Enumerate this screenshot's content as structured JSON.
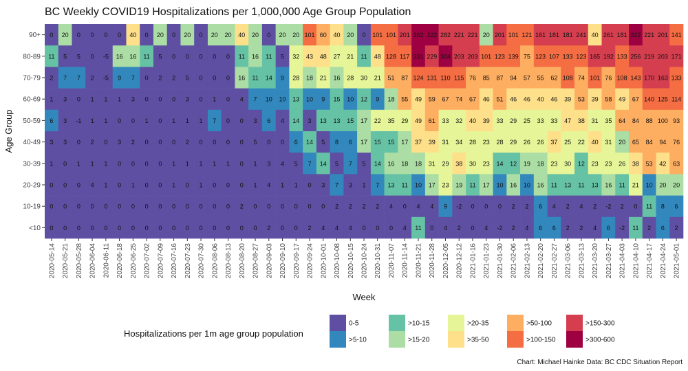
{
  "chart_data": {
    "type": "heatmap",
    "title": "BC Weekly COVID19 Hospitalizations per 1,000,000 Age Group Population",
    "xlabel": "Week",
    "ylabel": "Age Group",
    "caption": "Chart: Michael Hainke Data: BC CDC Situation Report",
    "legend_title": "Hospitalizations per 1m age group population",
    "legend_placement": "bottom",
    "x": [
      "2020-05-14",
      "2020-05-21",
      "2020-05-28",
      "2020-06-04",
      "2020-06-11",
      "2020-06-18",
      "2020-06-25",
      "2020-07-02",
      "2020-07-09",
      "2020-07-16",
      "2020-07-23",
      "2020-07-30",
      "2020-08-06",
      "2020-08-13",
      "2020-08-20",
      "2020-08-27",
      "2020-09-03",
      "2020-09-10",
      "2020-09-17",
      "2020-09-24",
      "2020-10-01",
      "2020-10-08",
      "2020-10-15",
      "2020-10-24",
      "2020-10-31",
      "2020-11-07",
      "2020-11-14",
      "2020-11-21",
      "2020-11-28",
      "2020-12-05",
      "2020-12-12",
      "2021-01-16",
      "2021-01-23",
      "2021-01-30",
      "2021-02-06",
      "2021-02-13",
      "2021-02-20",
      "2021-02-27",
      "2021-03-06",
      "2021-03-13",
      "2021-03-20",
      "2021-03-27",
      "2021-04-03",
      "2021-04-10",
      "2021-04-17",
      "2021-04-24",
      "2021-05-01"
    ],
    "tick_step": 1,
    "bins": [
      {
        "label": "0-5",
        "max": 5,
        "color": "#5e4fa2"
      },
      {
        "label": ">5-10",
        "max": 10,
        "color": "#3288bd"
      },
      {
        "label": ">10-15",
        "max": 15,
        "color": "#66c2a5"
      },
      {
        "label": ">15-20",
        "max": 20,
        "color": "#abdda4"
      },
      {
        "label": ">20-35",
        "max": 35,
        "color": "#e6f598"
      },
      {
        "label": ">35-50",
        "max": 50,
        "color": "#fee08b"
      },
      {
        "label": ">50-100",
        "max": 100,
        "color": "#fdae61"
      },
      {
        "label": ">100-150",
        "max": 150,
        "color": "#f46d43"
      },
      {
        "label": ">150-300",
        "max": 300,
        "color": "#d53e4f"
      },
      {
        "label": ">300-600",
        "max": 600,
        "color": "#9e0142"
      }
    ],
    "rows": [
      {
        "group": "90+",
        "values": [
          0,
          20,
          0,
          0,
          0,
          0,
          40,
          0,
          20,
          0,
          20,
          0,
          20,
          20,
          40,
          20,
          0,
          20,
          20,
          101,
          60,
          40,
          20,
          0,
          101,
          101,
          201,
          362,
          322,
          282,
          221,
          221,
          20,
          201,
          101,
          121,
          161,
          181,
          181,
          241,
          40,
          261,
          181,
          322,
          221,
          201,
          141
        ]
      },
      {
        "group": "80-89",
        "values": [
          11,
          5,
          5,
          0,
          -5,
          16,
          16,
          11,
          5,
          0,
          0,
          0,
          0,
          0,
          11,
          16,
          11,
          5,
          32,
          43,
          48,
          27,
          21,
          11,
          48,
          128,
          117,
          331,
          229,
          304,
          203,
          203,
          101,
          123,
          139,
          75,
          123,
          107,
          133,
          123,
          165,
          192,
          133,
          256,
          219,
          203,
          171
        ]
      },
      {
        "group": "70-79",
        "values": [
          2,
          7,
          7,
          2,
          -5,
          9,
          7,
          0,
          2,
          2,
          5,
          0,
          0,
          0,
          16,
          11,
          14,
          9,
          28,
          18,
          21,
          16,
          28,
          30,
          21,
          51,
          87,
          124,
          131,
          110,
          115,
          76,
          85,
          87,
          94,
          57,
          55,
          62,
          108,
          74,
          101,
          76,
          108,
          143,
          170,
          163,
          133
        ]
      },
      {
        "group": "60-69",
        "values": [
          1,
          3,
          0,
          1,
          1,
          1,
          3,
          0,
          0,
          0,
          3,
          0,
          1,
          0,
          4,
          7,
          10,
          10,
          13,
          10,
          9,
          15,
          10,
          12,
          9,
          18,
          55,
          49,
          59,
          67,
          74,
          67,
          46,
          51,
          46,
          46,
          40,
          46,
          39,
          53,
          39,
          58,
          49,
          67,
          140,
          125,
          114
        ]
      },
      {
        "group": "50-59",
        "values": [
          6,
          3,
          -1,
          1,
          1,
          0,
          0,
          1,
          0,
          1,
          1,
          1,
          7,
          0,
          0,
          3,
          6,
          4,
          14,
          3,
          13,
          13,
          15,
          17,
          22,
          35,
          29,
          49,
          61,
          33,
          32,
          40,
          39,
          33,
          29,
          25,
          33,
          33,
          47,
          38,
          31,
          35,
          64,
          84,
          88,
          100,
          93
        ]
      },
      {
        "group": "40-49",
        "values": [
          3,
          3,
          0,
          2,
          0,
          3,
          2,
          0,
          0,
          0,
          2,
          0,
          0,
          0,
          0,
          5,
          0,
          0,
          6,
          14,
          5,
          8,
          6,
          17,
          15,
          15,
          17,
          37,
          39,
          31,
          34,
          28,
          23,
          28,
          29,
          26,
          26,
          37,
          25,
          22,
          40,
          31,
          20,
          65,
          84,
          94,
          76
        ]
      },
      {
        "group": "30-39",
        "values": [
          1,
          0,
          1,
          1,
          1,
          0,
          0,
          0,
          0,
          1,
          1,
          1,
          1,
          1,
          0,
          1,
          3,
          4,
          5,
          7,
          14,
          5,
          7,
          5,
          14,
          16,
          18,
          18,
          31,
          29,
          38,
          30,
          23,
          14,
          12,
          19,
          18,
          23,
          30,
          12,
          23,
          23,
          26,
          38,
          53,
          42,
          63
        ]
      },
      {
        "group": "20-29",
        "values": [
          0,
          0,
          0,
          4,
          1,
          0,
          1,
          0,
          0,
          1,
          0,
          1,
          0,
          0,
          0,
          1,
          4,
          1,
          1,
          0,
          3,
          7,
          3,
          1,
          7,
          13,
          11,
          10,
          17,
          23,
          19,
          11,
          17,
          10,
          16,
          10,
          16,
          11,
          13,
          11,
          13,
          16,
          11,
          21,
          10,
          20,
          20
        ]
      },
      {
        "group": "10-19",
        "values": [
          0,
          0,
          0,
          0,
          0,
          0,
          0,
          0,
          0,
          0,
          0,
          0,
          0,
          0,
          2,
          0,
          0,
          0,
          0,
          0,
          0,
          2,
          2,
          2,
          2,
          4,
          0,
          4,
          4,
          9,
          -2,
          0,
          0,
          0,
          2,
          2,
          6,
          4,
          2,
          4,
          2,
          -2,
          2,
          0,
          11,
          8,
          6
        ]
      },
      {
        "group": "<10",
        "values": [
          0,
          0,
          0,
          0,
          0,
          0,
          0,
          0,
          0,
          0,
          0,
          0,
          0,
          0,
          0,
          0,
          2,
          0,
          0,
          2,
          4,
          4,
          4,
          0,
          0,
          0,
          4,
          11,
          0,
          4,
          2,
          0,
          4,
          -2,
          2,
          4,
          6,
          6,
          2,
          2,
          4,
          6,
          -2,
          11,
          2,
          6,
          2
        ]
      }
    ]
  }
}
